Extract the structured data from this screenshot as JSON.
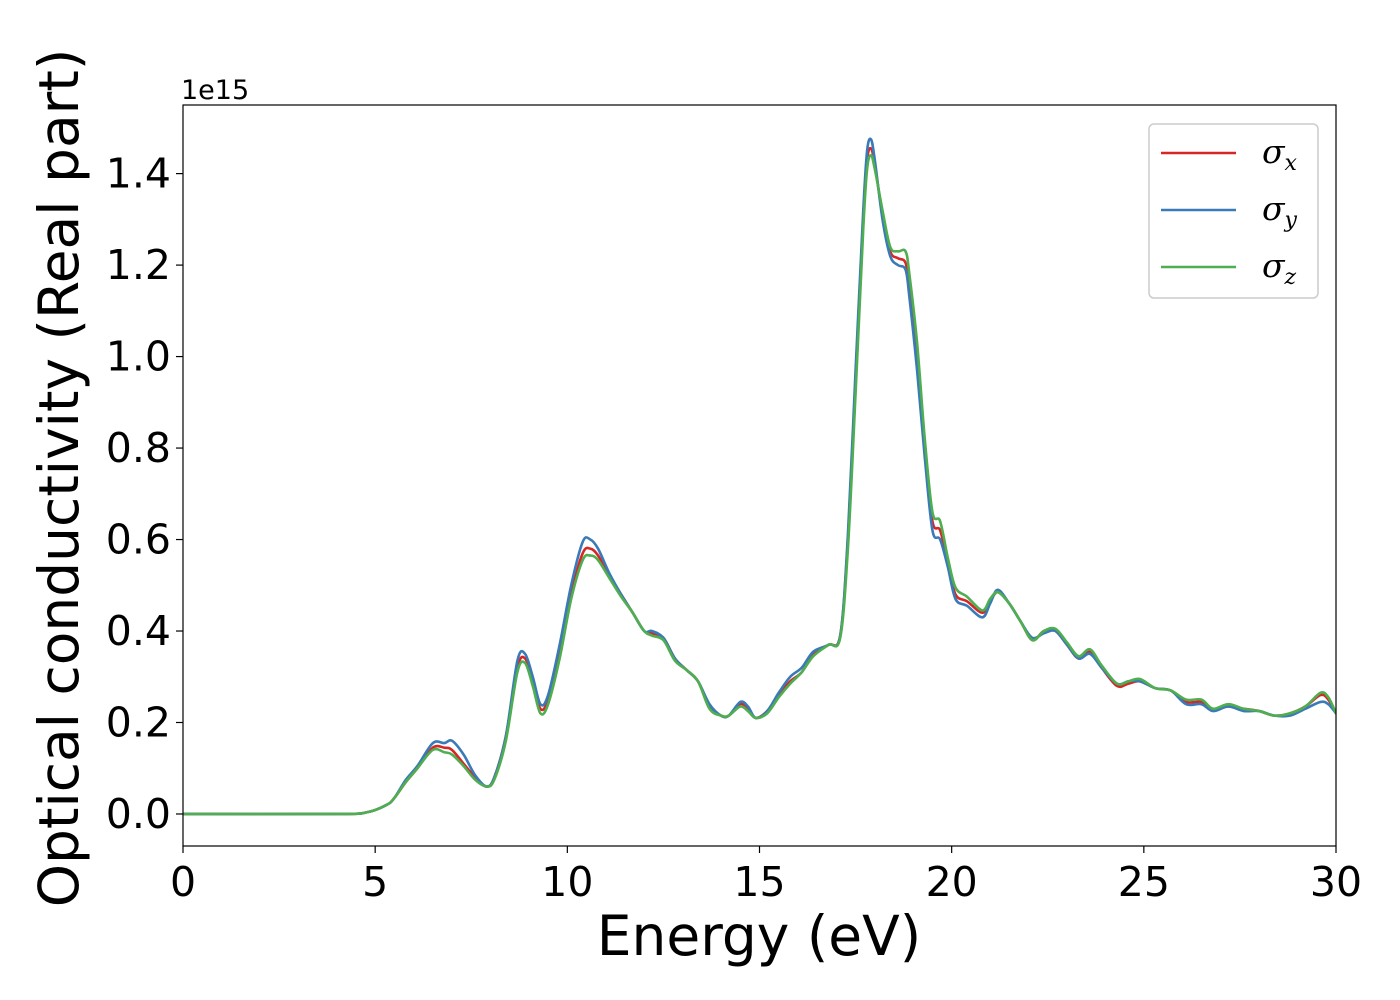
{
  "chart_data": {
    "type": "line",
    "xlabel": "Energy (eV)",
    "ylabel": "Optical conductivity (Real part)",
    "y_offset_label": "1e15",
    "xlim": [
      0,
      30
    ],
    "ylim": [
      -0.07,
      1.55
    ],
    "x_ticks": [
      0,
      5,
      10,
      15,
      20,
      25,
      30
    ],
    "x_tick_labels": [
      "0",
      "5",
      "10",
      "15",
      "20",
      "25",
      "30"
    ],
    "y_ticks": [
      0.0,
      0.2,
      0.4,
      0.6,
      0.8,
      1.0,
      1.2,
      1.4
    ],
    "y_tick_labels": [
      "0.0",
      "0.2",
      "0.4",
      "0.6",
      "0.8",
      "1.0",
      "1.2",
      "1.4"
    ],
    "grid": false,
    "legend_position": "top-right",
    "series": [
      {
        "name": "σx",
        "symbol": "σ",
        "subscript": "x",
        "color": "#d62728",
        "x": [
          0,
          4,
          4.8,
          5.3,
          5.5,
          5.8,
          6.1,
          6.5,
          6.8,
          7.0,
          7.3,
          7.6,
          7.9,
          8.1,
          8.4,
          8.7,
          8.9,
          9.1,
          9.3,
          9.5,
          9.8,
          10.1,
          10.4,
          10.6,
          10.8,
          11.1,
          11.4,
          11.7,
          12.0,
          12.2,
          12.5,
          12.8,
          13.1,
          13.4,
          13.7,
          14.0,
          14.2,
          14.5,
          14.7,
          14.9,
          15.2,
          15.5,
          15.8,
          16.1,
          16.4,
          16.8,
          17.1,
          17.3,
          17.5,
          17.7,
          17.8,
          17.9,
          18.0,
          18.2,
          18.4,
          18.6,
          18.8,
          18.9,
          19.1,
          19.3,
          19.5,
          19.7,
          19.9,
          20.1,
          20.4,
          20.8,
          21.0,
          21.2,
          21.5,
          21.8,
          22.1,
          22.4,
          22.7,
          23.0,
          23.3,
          23.6,
          23.9,
          24.3,
          24.6,
          24.9,
          25.3,
          25.7,
          26.1,
          26.5,
          26.8,
          27.2,
          27.6,
          28.0,
          28.4,
          28.8,
          29.2,
          29.6,
          29.8,
          30.0
        ],
        "y": [
          0.0,
          0.0,
          0.004,
          0.02,
          0.035,
          0.07,
          0.1,
          0.145,
          0.145,
          0.14,
          0.11,
          0.08,
          0.06,
          0.08,
          0.17,
          0.32,
          0.34,
          0.29,
          0.23,
          0.25,
          0.35,
          0.48,
          0.57,
          0.58,
          0.565,
          0.52,
          0.48,
          0.44,
          0.4,
          0.395,
          0.385,
          0.34,
          0.315,
          0.29,
          0.235,
          0.215,
          0.215,
          0.24,
          0.23,
          0.21,
          0.225,
          0.26,
          0.29,
          0.31,
          0.35,
          0.37,
          0.39,
          0.6,
          0.95,
          1.3,
          1.43,
          1.455,
          1.42,
          1.31,
          1.23,
          1.215,
          1.205,
          1.15,
          1.0,
          0.8,
          0.64,
          0.62,
          0.55,
          0.48,
          0.465,
          0.44,
          0.465,
          0.485,
          0.46,
          0.42,
          0.38,
          0.4,
          0.4,
          0.37,
          0.34,
          0.355,
          0.32,
          0.28,
          0.285,
          0.29,
          0.275,
          0.27,
          0.245,
          0.245,
          0.23,
          0.235,
          0.23,
          0.225,
          0.215,
          0.22,
          0.235,
          0.26,
          0.25,
          0.22
        ]
      },
      {
        "name": "σy",
        "symbol": "σ",
        "subscript": "y",
        "color": "#3a7ab8",
        "x": [
          0,
          4,
          4.8,
          5.3,
          5.5,
          5.8,
          6.1,
          6.5,
          6.8,
          7.0,
          7.3,
          7.6,
          7.9,
          8.1,
          8.4,
          8.7,
          8.9,
          9.1,
          9.3,
          9.5,
          9.8,
          10.1,
          10.4,
          10.6,
          10.8,
          11.1,
          11.4,
          11.7,
          12.0,
          12.2,
          12.5,
          12.8,
          13.1,
          13.4,
          13.7,
          14.0,
          14.2,
          14.5,
          14.7,
          14.9,
          15.2,
          15.5,
          15.8,
          16.1,
          16.4,
          16.8,
          17.1,
          17.3,
          17.5,
          17.7,
          17.8,
          17.9,
          18.0,
          18.2,
          18.4,
          18.6,
          18.8,
          18.9,
          19.1,
          19.3,
          19.5,
          19.7,
          19.9,
          20.1,
          20.4,
          20.8,
          21.0,
          21.2,
          21.5,
          21.8,
          22.1,
          22.4,
          22.7,
          23.0,
          23.3,
          23.6,
          23.9,
          24.3,
          24.6,
          24.9,
          25.3,
          25.7,
          26.1,
          26.5,
          26.8,
          27.2,
          27.6,
          28.0,
          28.4,
          28.8,
          29.2,
          29.6,
          29.8,
          30.0
        ],
        "y": [
          0.0,
          0.0,
          0.004,
          0.02,
          0.035,
          0.075,
          0.105,
          0.155,
          0.155,
          0.16,
          0.13,
          0.085,
          0.06,
          0.08,
          0.17,
          0.335,
          0.35,
          0.3,
          0.24,
          0.26,
          0.37,
          0.5,
          0.595,
          0.6,
          0.58,
          0.525,
          0.48,
          0.44,
          0.4,
          0.4,
          0.385,
          0.34,
          0.315,
          0.29,
          0.24,
          0.215,
          0.215,
          0.245,
          0.235,
          0.21,
          0.225,
          0.265,
          0.3,
          0.32,
          0.355,
          0.37,
          0.39,
          0.61,
          0.97,
          1.32,
          1.45,
          1.475,
          1.43,
          1.3,
          1.22,
          1.2,
          1.19,
          1.13,
          0.97,
          0.78,
          0.62,
          0.6,
          0.54,
          0.47,
          0.455,
          0.43,
          0.46,
          0.49,
          0.46,
          0.42,
          0.385,
          0.395,
          0.4,
          0.37,
          0.34,
          0.35,
          0.32,
          0.285,
          0.29,
          0.29,
          0.275,
          0.27,
          0.24,
          0.24,
          0.225,
          0.235,
          0.225,
          0.225,
          0.215,
          0.215,
          0.23,
          0.245,
          0.24,
          0.22
        ]
      },
      {
        "name": "σz",
        "symbol": "σ",
        "subscript": "z",
        "color": "#4fae4f",
        "x": [
          0,
          4,
          4.8,
          5.3,
          5.5,
          5.8,
          6.1,
          6.5,
          6.8,
          7.0,
          7.3,
          7.6,
          7.9,
          8.1,
          8.4,
          8.7,
          8.9,
          9.1,
          9.3,
          9.5,
          9.8,
          10.1,
          10.4,
          10.6,
          10.8,
          11.1,
          11.4,
          11.7,
          12.0,
          12.2,
          12.5,
          12.8,
          13.1,
          13.4,
          13.7,
          14.0,
          14.2,
          14.5,
          14.7,
          14.9,
          15.2,
          15.5,
          15.8,
          16.1,
          16.4,
          16.8,
          17.1,
          17.3,
          17.5,
          17.7,
          17.8,
          17.9,
          18.0,
          18.2,
          18.4,
          18.6,
          18.8,
          18.9,
          19.1,
          19.3,
          19.5,
          19.7,
          19.9,
          20.1,
          20.4,
          20.8,
          21.0,
          21.2,
          21.5,
          21.8,
          22.1,
          22.4,
          22.7,
          23.0,
          23.3,
          23.6,
          23.9,
          24.3,
          24.6,
          24.9,
          25.3,
          25.7,
          26.1,
          26.5,
          26.8,
          27.2,
          27.6,
          28.0,
          28.4,
          28.8,
          29.2,
          29.6,
          29.8,
          30.0
        ],
        "y": [
          0.0,
          0.0,
          0.004,
          0.02,
          0.035,
          0.07,
          0.1,
          0.14,
          0.135,
          0.13,
          0.105,
          0.075,
          0.06,
          0.075,
          0.16,
          0.31,
          0.33,
          0.28,
          0.22,
          0.24,
          0.34,
          0.47,
          0.555,
          0.565,
          0.555,
          0.515,
          0.475,
          0.44,
          0.4,
          0.39,
          0.38,
          0.335,
          0.315,
          0.29,
          0.23,
          0.215,
          0.215,
          0.235,
          0.225,
          0.21,
          0.22,
          0.255,
          0.285,
          0.31,
          0.345,
          0.37,
          0.385,
          0.58,
          0.92,
          1.28,
          1.41,
          1.44,
          1.41,
          1.32,
          1.24,
          1.23,
          1.23,
          1.18,
          1.03,
          0.82,
          0.66,
          0.64,
          0.56,
          0.495,
          0.475,
          0.445,
          0.47,
          0.485,
          0.46,
          0.42,
          0.38,
          0.4,
          0.405,
          0.375,
          0.345,
          0.36,
          0.325,
          0.285,
          0.29,
          0.295,
          0.275,
          0.27,
          0.25,
          0.25,
          0.23,
          0.24,
          0.23,
          0.225,
          0.215,
          0.22,
          0.235,
          0.265,
          0.255,
          0.22
        ]
      }
    ]
  }
}
